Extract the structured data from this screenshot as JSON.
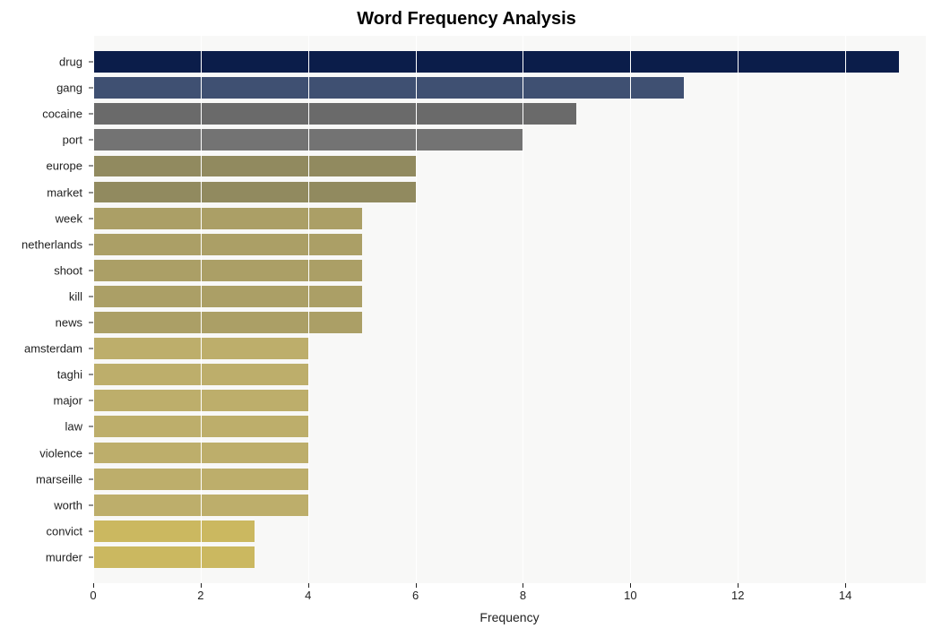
{
  "chart": {
    "type": "bar-horizontal",
    "title": "Word Frequency Analysis",
    "title_fontsize": 20,
    "title_fontweight": "bold",
    "xlabel": "Frequency",
    "label_fontsize": 14,
    "tick_fontsize": 13,
    "background_color": "#ffffff",
    "plot_background": "#f8f8f7",
    "grid_color": "#ffffff",
    "text_color": "#222222",
    "xlim": [
      0,
      15.5
    ],
    "xtick_step": 2,
    "xticks": [
      0,
      2,
      4,
      6,
      8,
      10,
      12,
      14
    ],
    "bar_width": 0.82,
    "data": [
      {
        "label": "drug",
        "value": 15,
        "color": "#0b1d4a"
      },
      {
        "label": "gang",
        "value": 11,
        "color": "#3f5072"
      },
      {
        "label": "cocaine",
        "value": 9,
        "color": "#6a6a6a"
      },
      {
        "label": "port",
        "value": 8,
        "color": "#737373"
      },
      {
        "label": "europe",
        "value": 6,
        "color": "#918a5f"
      },
      {
        "label": "market",
        "value": 6,
        "color": "#918a5f"
      },
      {
        "label": "week",
        "value": 5,
        "color": "#ab9f66"
      },
      {
        "label": "netherlands",
        "value": 5,
        "color": "#ab9f66"
      },
      {
        "label": "shoot",
        "value": 5,
        "color": "#ab9f66"
      },
      {
        "label": "kill",
        "value": 5,
        "color": "#ab9f66"
      },
      {
        "label": "news",
        "value": 5,
        "color": "#ab9f66"
      },
      {
        "label": "amsterdam",
        "value": 4,
        "color": "#bdae6b"
      },
      {
        "label": "taghi",
        "value": 4,
        "color": "#bdae6b"
      },
      {
        "label": "major",
        "value": 4,
        "color": "#bdae6b"
      },
      {
        "label": "law",
        "value": 4,
        "color": "#bdae6b"
      },
      {
        "label": "violence",
        "value": 4,
        "color": "#bdae6b"
      },
      {
        "label": "marseille",
        "value": 4,
        "color": "#bdae6b"
      },
      {
        "label": "worth",
        "value": 4,
        "color": "#bdae6b"
      },
      {
        "label": "convict",
        "value": 3,
        "color": "#cbb860"
      },
      {
        "label": "murder",
        "value": 3,
        "color": "#cbb860"
      }
    ]
  }
}
